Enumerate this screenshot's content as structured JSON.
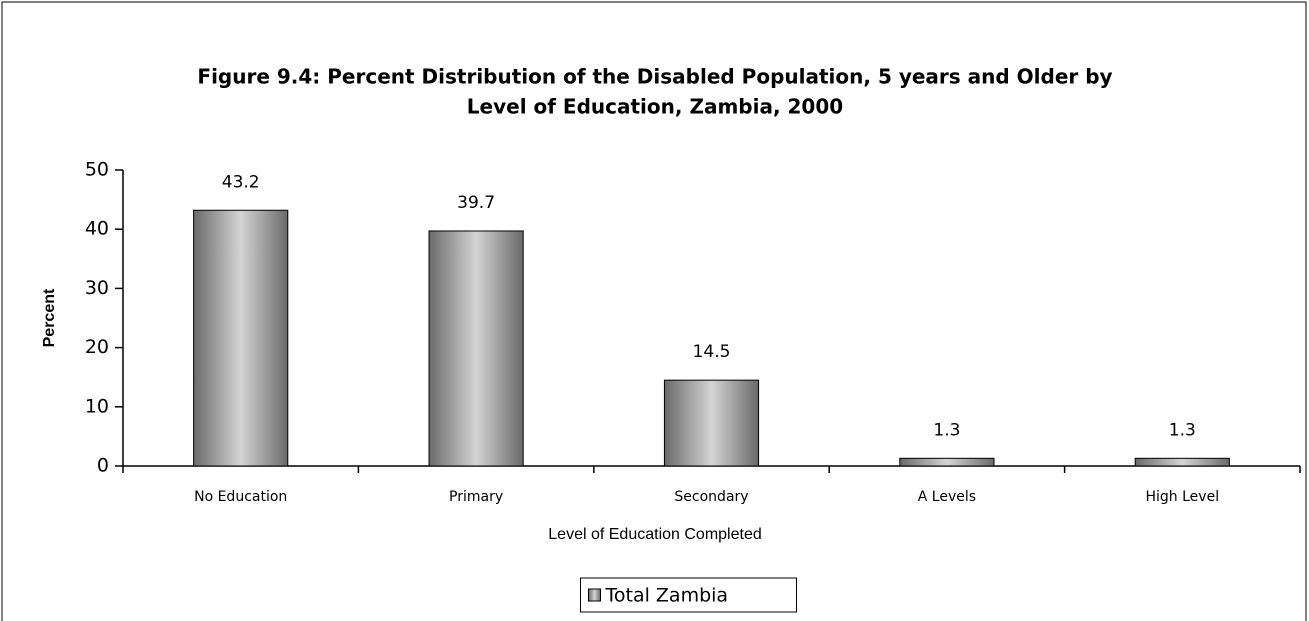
{
  "chart_data": {
    "type": "bar",
    "title_lines": [
      "Figure 9.4: Percent Distribution of the Disabled Population, 5 years and Older by",
      "Level of Education, Zambia, 2000"
    ],
    "x_label": "Level of Education Completed",
    "y_label": "Percent",
    "categories": [
      "No Education",
      "Primary",
      "Secondary",
      "A Levels",
      "High Level"
    ],
    "series": [
      {
        "name": "Total Zambia",
        "color": "#8c8c8c",
        "values": [
          43.2,
          39.7,
          14.5,
          1.3,
          1.3
        ]
      }
    ],
    "ylim": [
      0,
      50
    ],
    "yticks": [
      0,
      10,
      20,
      30,
      40,
      50
    ],
    "grid": false,
    "legend": "bottom"
  }
}
